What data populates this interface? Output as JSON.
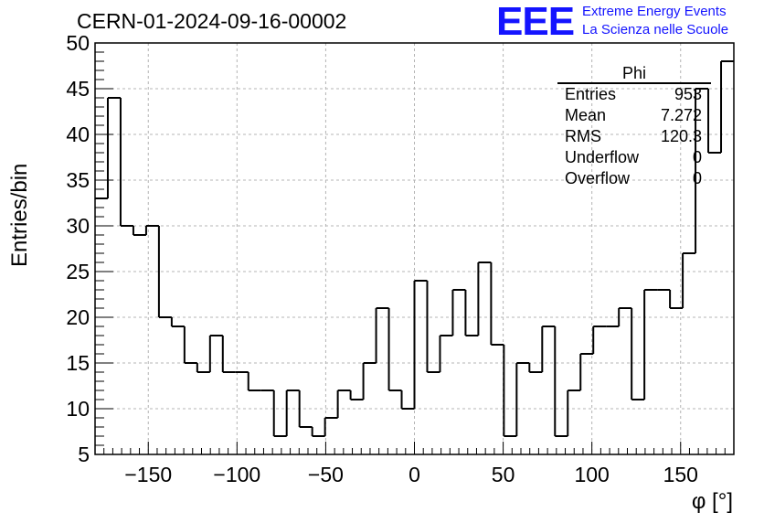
{
  "header": {
    "title": "CERN-01-2024-09-16-00002",
    "logo_text": "EEE",
    "org_line1": "Extreme Energy Events",
    "org_line2": "La Scienza nelle Scuole"
  },
  "stats_box": {
    "title": "Phi",
    "rows": [
      {
        "label": "Entries",
        "value": "953"
      },
      {
        "label": "Mean",
        "value": "7.272"
      },
      {
        "label": "RMS",
        "value": "120.3"
      },
      {
        "label": "Underflow",
        "value": "0"
      },
      {
        "label": "Overflow",
        "value": "0"
      }
    ]
  },
  "chart_data": {
    "type": "bar",
    "title": "CERN-01-2024-09-16-00002",
    "xlabel": "φ [°]",
    "ylabel": "Entries/bin",
    "xlim": [
      -180,
      180
    ],
    "ylim": [
      5,
      50
    ],
    "bin_width": 7.2,
    "x_ticks": [
      -150,
      -100,
      -50,
      0,
      50,
      100,
      150
    ],
    "x_tick_labels": [
      "−150",
      "−100",
      "−50",
      "0",
      "50",
      "100",
      "150"
    ],
    "y_ticks": [
      5,
      10,
      15,
      20,
      25,
      30,
      35,
      40,
      45,
      50
    ],
    "grid": true,
    "values": [
      33,
      44,
      30,
      29,
      30,
      20,
      19,
      15,
      14,
      18,
      14,
      14,
      12,
      12,
      7,
      12,
      8,
      7,
      9,
      12,
      11,
      15,
      21,
      12,
      10,
      24,
      14,
      18,
      23,
      18,
      26,
      17,
      7,
      15,
      14,
      19,
      7,
      12,
      16,
      19,
      19,
      21,
      11,
      23,
      23,
      21,
      27,
      45,
      38,
      48
    ]
  }
}
